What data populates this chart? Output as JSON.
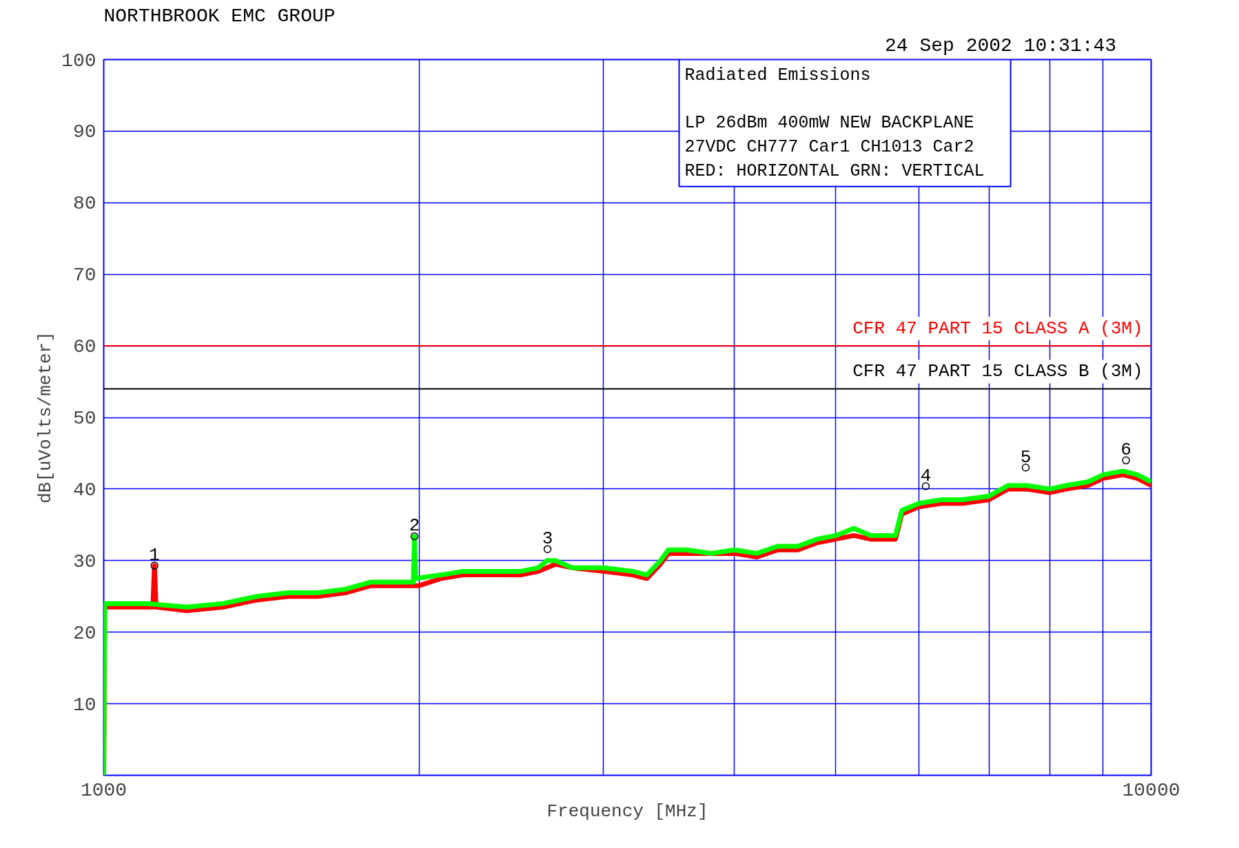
{
  "chart_data": {
    "type": "line",
    "title": "NORTHBROOK EMC GROUP",
    "xlabel": "Frequency [MHz]",
    "ylabel": "dB[uVolts/meter]",
    "log": "x",
    "xlim": [
      1000,
      10000
    ],
    "xticks": [
      1000,
      {
        "value": 2000,
        "label": null
      },
      {
        "value": 3000,
        "label": null
      },
      {
        "value": 4000,
        "label": null
      },
      {
        "value": 5000,
        "label": null
      },
      {
        "value": 6000,
        "label": null
      },
      {
        "value": 7000,
        "label": null
      },
      {
        "value": 8000,
        "label": null
      },
      {
        "value": 9000,
        "label": null
      },
      10000
    ],
    "ylim": [
      0,
      100
    ],
    "yticks": [
      {
        "value": 0,
        "label": null
      },
      10,
      20,
      30,
      40,
      50,
      60,
      70,
      80,
      90,
      100
    ],
    "grid": true,
    "series": [
      {
        "color": "#ff0000",
        "x": [
          1000,
          1002,
          1050,
          1100,
          1114,
          1118,
          1122,
          1200,
          1300,
          1400,
          1500,
          1600,
          1700,
          1800,
          1900,
          2000,
          2100,
          2200,
          2400,
          2500,
          2600,
          2700,
          2800,
          3000,
          3200,
          3300,
          3400,
          3460,
          3600,
          3800,
          4000,
          4200,
          4400,
          4600,
          4800,
          5000,
          5200,
          5400,
          5700,
          5780,
          6000,
          6300,
          6600,
          7000,
          7300,
          7600,
          8000,
          8300,
          8700,
          9000,
          9400,
          9700,
          10000
        ],
        "values": [
          0,
          23.5,
          23.5,
          23.5,
          23.5,
          29.3,
          23.5,
          23,
          23.5,
          24.5,
          25,
          25,
          25.5,
          26.5,
          26.5,
          26.5,
          27.5,
          28,
          28,
          28,
          28.5,
          29.5,
          29,
          28.5,
          28,
          27.5,
          29.5,
          31,
          31,
          31,
          31,
          30.5,
          31.5,
          31.5,
          32.5,
          33,
          33.5,
          33,
          33,
          36.5,
          37.5,
          38,
          38,
          38.5,
          40,
          40,
          39.5,
          40,
          40.5,
          41.5,
          42,
          41.5,
          40.5
        ]
      },
      {
        "color": "#00ff00",
        "x": [
          1000,
          1002,
          1050,
          1100,
          1200,
          1300,
          1400,
          1500,
          1600,
          1700,
          1800,
          1900,
          1975,
          1980,
          1985,
          2100,
          2200,
          2400,
          2500,
          2600,
          2650,
          2700,
          2800,
          3000,
          3200,
          3300,
          3400,
          3460,
          3600,
          3800,
          4000,
          4200,
          4400,
          4600,
          4800,
          5000,
          5200,
          5400,
          5700,
          5780,
          6000,
          6300,
          6600,
          7000,
          7300,
          7600,
          8000,
          8300,
          8700,
          9000,
          9400,
          9700,
          10000
        ],
        "values": [
          0,
          24,
          24,
          24,
          23.5,
          24,
          25,
          25.5,
          25.5,
          26,
          27,
          27,
          27,
          33.4,
          27.5,
          28,
          28.5,
          28.5,
          28.5,
          29,
          30,
          30,
          29,
          29,
          28.5,
          28,
          30,
          31.5,
          31.5,
          31,
          31.5,
          31,
          32,
          32,
          33,
          33.5,
          34.5,
          33.5,
          33.5,
          37,
          38,
          38.5,
          38.5,
          39,
          40.5,
          40.5,
          40,
          40.5,
          41,
          42,
          42.5,
          42,
          41
        ]
      }
    ],
    "ref_lines": [
      {
        "axis": "y",
        "value": 60,
        "label": "CFR 47 PART 15 CLASS A (3M)",
        "color": "#ff0000"
      },
      {
        "axis": "y",
        "value": 54,
        "label": "CFR 47 PART 15 CLASS B (3M)",
        "color": "#000000"
      }
    ],
    "annotations": [
      "24 Sep 2002    10:31:43",
      "Radiated Emissions\n\nLP 26dBm 400mW NEW BACKPLANE\n27VDC   CH777 Car1 CH1013 Car2\nRED: HORIZONTAL   GRN: VERTICAL",
      {
        "text": "1",
        "x": 1118,
        "y": 29.3
      },
      {
        "text": "2",
        "x": 1980,
        "y": 33.4
      },
      {
        "text": "3",
        "x": 2653,
        "y": 31.6
      },
      {
        "text": "4",
        "x": 6093,
        "y": 40.4
      },
      {
        "text": "5",
        "x": 7590,
        "y": 43
      },
      {
        "text": "6",
        "x": 9463,
        "y": 44
      }
    ]
  }
}
